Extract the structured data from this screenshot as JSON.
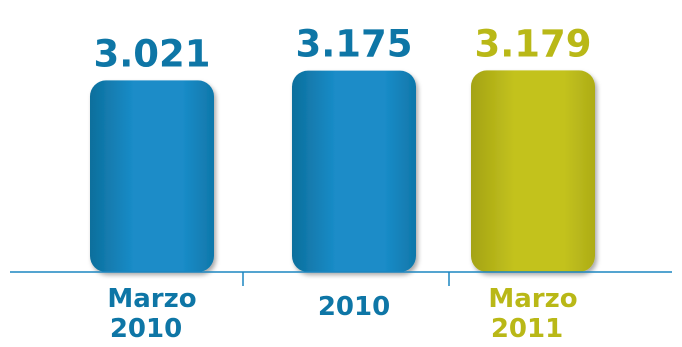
{
  "chart_data": {
    "type": "bar",
    "title": "",
    "xlabel": "",
    "ylabel": "",
    "categories": [
      [
        "Marzo",
        "2010"
      ],
      [
        "2010"
      ],
      [
        "Marzo",
        "2011"
      ]
    ],
    "values": [
      3021,
      3175,
      3179
    ],
    "value_labels": [
      "3.021",
      "3.175",
      "3.179"
    ],
    "ylim": [
      0,
      3500
    ],
    "grid": false,
    "legend": "none",
    "colors": {
      "bar_blue": "#1a8cc8",
      "bar_blue_dark": "#0d6f9c",
      "bar_green": "#c3c21f",
      "bar_green_dark": "#a4a312",
      "label_blue": "#0e76a6",
      "label_green": "#b9b817",
      "axis": "#1b85c0"
    },
    "bar_colors": [
      "blue",
      "blue",
      "green"
    ]
  }
}
